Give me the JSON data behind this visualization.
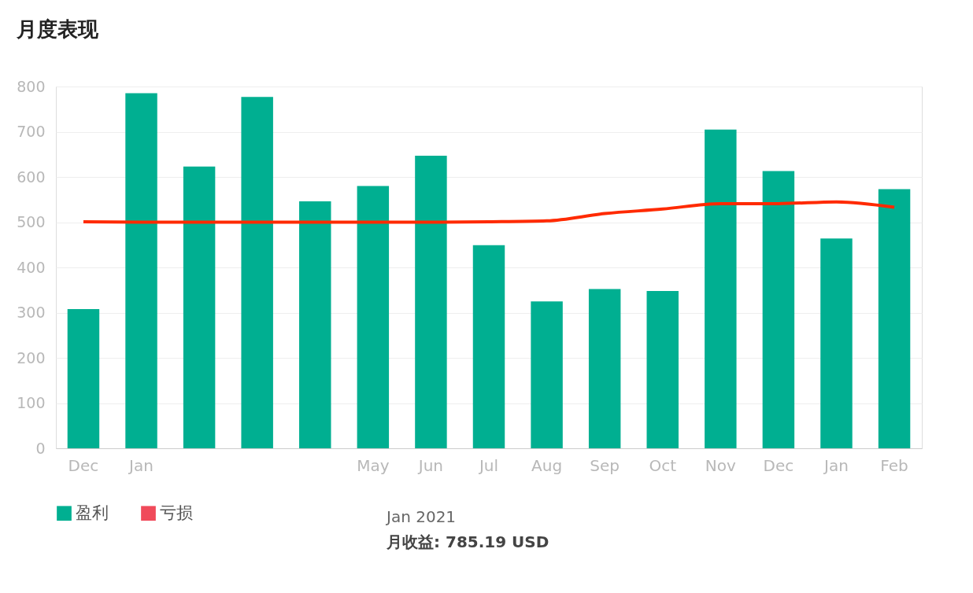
{
  "chart_data": {
    "type": "bar",
    "title": "月度表现",
    "categories": [
      "Dec",
      "Jan",
      null,
      null,
      null,
      "May",
      "Jun",
      "Jul",
      "Aug",
      "Sep",
      "Oct",
      "Nov",
      "Dec",
      "Jan",
      "Feb"
    ],
    "series": [
      {
        "name": "盈利",
        "color": "#00af91",
        "values": [
          308,
          785.19,
          623,
          777,
          546,
          580,
          647,
          449,
          325,
          352,
          348,
          705,
          613,
          464,
          573
        ]
      },
      {
        "name": "亏损",
        "color": "#f04a5a",
        "values": [
          null,
          null,
          null,
          null,
          null,
          null,
          null,
          null,
          null,
          null,
          null,
          null,
          null,
          null,
          null
        ]
      },
      {
        "type": "line",
        "color": "#ff2a00",
        "values": [
          501,
          500,
          500,
          500,
          500,
          500,
          500,
          501,
          503,
          519,
          529,
          541,
          541,
          545,
          533
        ]
      }
    ],
    "ylim": [
      0,
      800
    ],
    "yticks": [
      0,
      100,
      200,
      300,
      400,
      500,
      600,
      700,
      800
    ],
    "grid": "y",
    "legend": "bottom",
    "annotations": [
      "Jan 2021",
      "月收益: 785.19 USD"
    ]
  }
}
